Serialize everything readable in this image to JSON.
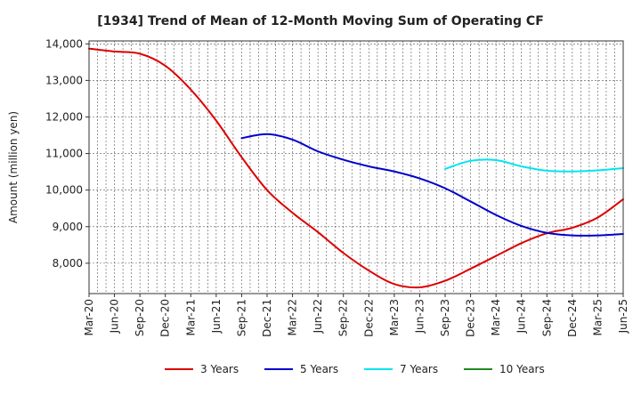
{
  "chart_data": {
    "type": "line",
    "title": "[1934]  Trend of Mean of 12-Month Moving Sum of Operating CF",
    "xlabel": "",
    "ylabel": "Amount (million yen)",
    "x_tick_labels": [
      "Mar-20",
      "Jun-20",
      "Sep-20",
      "Dec-20",
      "Mar-21",
      "Jun-21",
      "Sep-21",
      "Dec-21",
      "Mar-22",
      "Jun-22",
      "Sep-22",
      "Dec-22",
      "Mar-23",
      "Jun-23",
      "Sep-23",
      "Dec-23",
      "Mar-24",
      "Jun-24",
      "Sep-24",
      "Dec-24",
      "Mar-25",
      "Jun-25"
    ],
    "y_ticks": [
      8000,
      9000,
      10000,
      11000,
      12000,
      13000,
      14000
    ],
    "y_tick_labels": [
      "8,000",
      "9,000",
      "10,000",
      "11,000",
      "12,000",
      "13,000",
      "14,000"
    ],
    "ylim": [
      7170,
      14080
    ],
    "x_months": [
      0,
      63
    ],
    "grid": true,
    "legend_position": "bottom",
    "series": [
      {
        "name": "3 Years",
        "color": "#dd0000",
        "points": [
          [
            0,
            13870
          ],
          [
            3,
            13790
          ],
          [
            6,
            13730
          ],
          [
            9,
            13400
          ],
          [
            12,
            12750
          ],
          [
            15,
            11900
          ],
          [
            18,
            10900
          ],
          [
            21,
            10000
          ],
          [
            24,
            9380
          ],
          [
            27,
            8850
          ],
          [
            30,
            8280
          ],
          [
            33,
            7800
          ],
          [
            36,
            7430
          ],
          [
            39,
            7340
          ],
          [
            42,
            7520
          ],
          [
            45,
            7850
          ],
          [
            48,
            8200
          ],
          [
            51,
            8550
          ],
          [
            54,
            8820
          ],
          [
            57,
            8970
          ],
          [
            60,
            9250
          ],
          [
            63,
            9750
          ]
        ]
      },
      {
        "name": "5 Years",
        "color": "#0000cc",
        "points": [
          [
            18,
            11420
          ],
          [
            21,
            11530
          ],
          [
            24,
            11380
          ],
          [
            27,
            11060
          ],
          [
            30,
            10830
          ],
          [
            33,
            10650
          ],
          [
            36,
            10510
          ],
          [
            39,
            10320
          ],
          [
            42,
            10050
          ],
          [
            45,
            9690
          ],
          [
            48,
            9320
          ],
          [
            51,
            9020
          ],
          [
            54,
            8830
          ],
          [
            57,
            8760
          ],
          [
            60,
            8760
          ],
          [
            63,
            8800
          ]
        ]
      },
      {
        "name": "7 Years",
        "color": "#00e5ee",
        "points": [
          [
            42,
            10580
          ],
          [
            45,
            10800
          ],
          [
            48,
            10820
          ],
          [
            51,
            10650
          ],
          [
            54,
            10530
          ],
          [
            57,
            10510
          ],
          [
            60,
            10540
          ],
          [
            63,
            10600
          ]
        ]
      },
      {
        "name": "10 Years",
        "color": "#228822",
        "points": []
      }
    ]
  }
}
